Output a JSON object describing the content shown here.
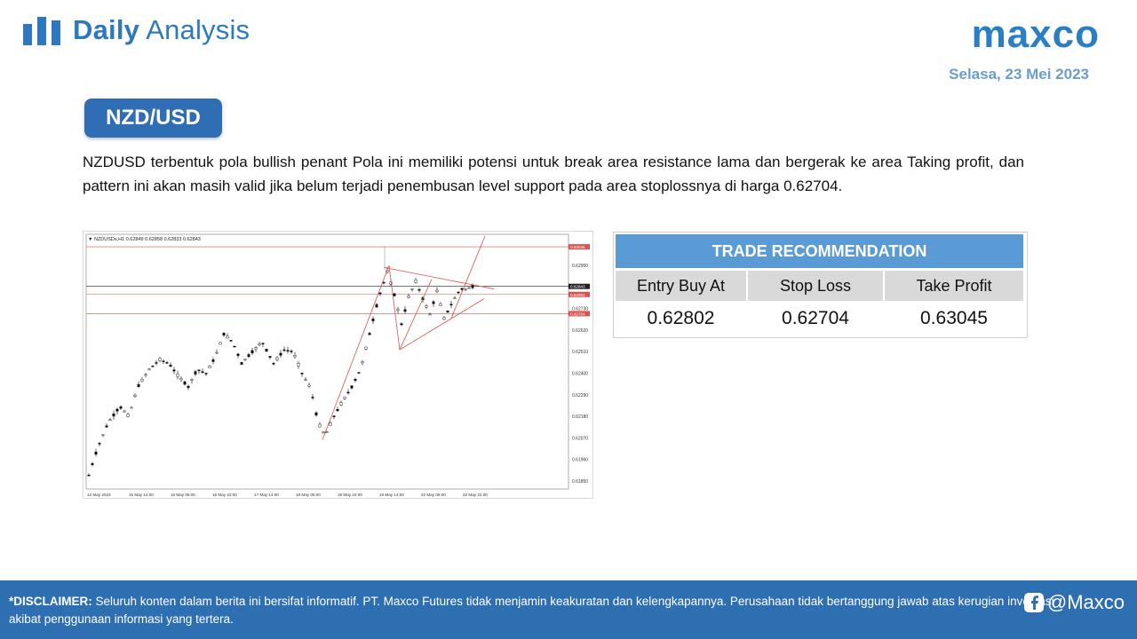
{
  "header": {
    "title_bold": "Daily",
    "title_rest": " Analysis",
    "icon": "bar-chart-logo-icon",
    "brand": "maxco",
    "date": "Selasa, 23 Mei 2023"
  },
  "instrument": "NZD/USD",
  "analysis_text": "NZDUSD terbentuk pola bullish penant Pola ini memiliki potensi untuk break area resistance lama dan bergerak ke area Taking profit, dan pattern ini akan masih valid jika belum terjadi penembusan level support pada area stoplossnya di harga 0.62704.",
  "chart": {
    "header_text": "▼ NZDUSDs,H1  0.62849 0.62858 0.62833 0.62843",
    "price_ticks": [
      "0.62950",
      "0.62730",
      "0.62620",
      "0.62510",
      "0.62400",
      "0.62290",
      "0.62180",
      "0.62070",
      "0.61960",
      "0.61850"
    ],
    "level_labels": [
      "0.63045",
      "0.62843",
      "0.62802",
      "0.62704"
    ],
    "time_ticks": [
      "12 May 2023",
      "15 May 14:00",
      "16 May 06:00",
      "16 May 22:00",
      "17 May 14:00",
      "18 May 06:00",
      "18 May 22:00",
      "19 May 14:00",
      "22 May 06:00",
      "22 May 22:00"
    ],
    "colors": {
      "level": "#d9534f",
      "current": "#222222",
      "candle_bull": "#ffffff",
      "candle_bear": "#000000"
    }
  },
  "trade": {
    "title": "TRADE RECOMMENDATION",
    "headers": [
      "Entry Buy At",
      "Stop Loss",
      "Take Profit"
    ],
    "values": [
      "0.62802",
      "0.62704",
      "0.63045"
    ]
  },
  "footer": {
    "disclaimer_label": "*DISCLAIMER:",
    "disclaimer_text": " Seluruh konten dalam berita ini bersifat informatif. PT. Maxco Futures tidak menjamin keakuratan dan kelengkapannya. Perusahaan tidak bertanggung jawab atas kerugian investasi akibat penggunaan informasi yang tertera.",
    "social_handle": "@Maxco",
    "social_icon": "facebook-icon"
  }
}
